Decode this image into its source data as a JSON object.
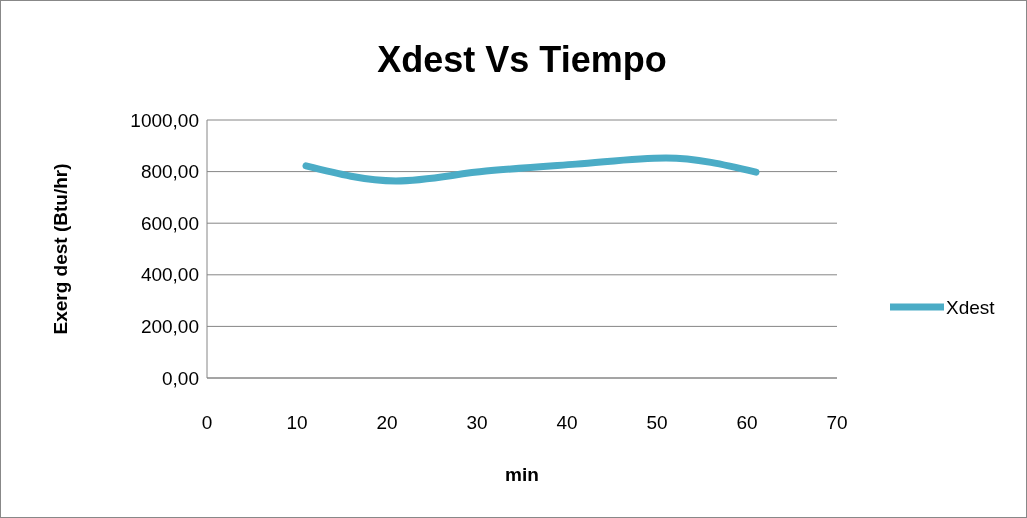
{
  "chart_data": {
    "type": "line",
    "title": "Xdest Vs Tiempo",
    "xlabel": "min",
    "ylabel": "Exerg dest (Btu/hr)",
    "x": [
      11,
      21,
      31,
      41,
      51,
      61
    ],
    "series": [
      {
        "name": "Xdest",
        "color": "#4bacc6",
        "values": [
          822,
          764,
          802,
          829,
          853,
          798
        ]
      }
    ],
    "xlim": [
      0,
      70
    ],
    "xticks": [
      0,
      10,
      20,
      30,
      40,
      50,
      60,
      70
    ],
    "ylim": [
      0,
      1000
    ],
    "yticks": [
      {
        "value": 0,
        "label": "0,00"
      },
      {
        "value": 200,
        "label": "200,00"
      },
      {
        "value": 400,
        "label": "400,00"
      },
      {
        "value": 600,
        "label": "600,00"
      },
      {
        "value": 800,
        "label": "800,00"
      },
      {
        "value": 1000,
        "label": "1000,00"
      }
    ],
    "grid": "y",
    "legend": "right",
    "marker": "none",
    "line_style": "solid"
  }
}
